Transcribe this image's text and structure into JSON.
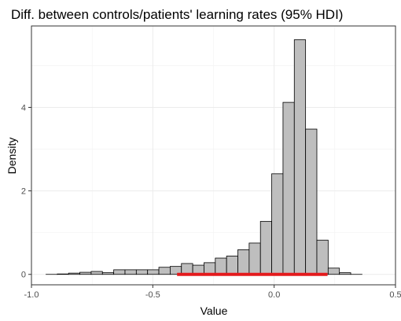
{
  "chart_data": {
    "type": "histogram",
    "title": "Diff. between controls/patients' learning rates (95% HDI)",
    "xlabel": "Value",
    "ylabel": "Density",
    "xlim": [
      -1.0,
      0.5
    ],
    "ylim": [
      -0.25,
      5.95
    ],
    "x_ticks": [
      -1.0,
      -0.5,
      0.0,
      0.5
    ],
    "x_tick_labels": [
      "-1.0",
      "-0.5",
      "0.0",
      "0.5"
    ],
    "y_ticks": [
      0,
      2,
      4
    ],
    "y_tick_labels": [
      "0",
      "2",
      "4"
    ],
    "grid": true,
    "bin_width": 0.0465,
    "bin_start": -0.94,
    "values": [
      0.0,
      0.01,
      0.03,
      0.05,
      0.07,
      0.04,
      0.11,
      0.11,
      0.11,
      0.11,
      0.17,
      0.19,
      0.26,
      0.22,
      0.28,
      0.39,
      0.44,
      0.59,
      0.75,
      1.27,
      2.41,
      4.12,
      5.62,
      3.48,
      0.82,
      0.15,
      0.04,
      0.0
    ],
    "hdi": {
      "lower": -0.4,
      "upper": 0.22,
      "color": "#e41a1c"
    },
    "bar_fill": "#bebebe",
    "bar_stroke": "#000000"
  }
}
